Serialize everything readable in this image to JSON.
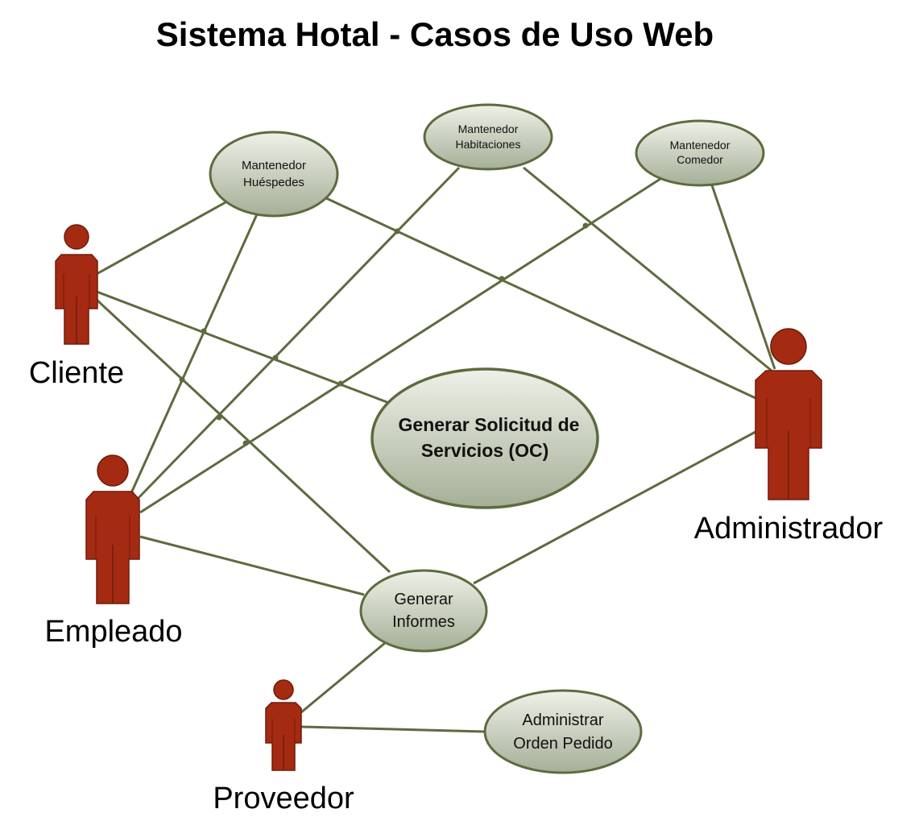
{
  "title": "Sistema Hotal - Casos de Uso Web",
  "colors": {
    "actor_fill": "#a52a12",
    "actor_stroke": "#6e1c0a",
    "usecase_fill_top": "#ecefe6",
    "usecase_fill_bottom": "#a9b39c",
    "usecase_stroke": "#5d6b3e",
    "connector": "#5d6b3e"
  },
  "actors": {
    "cliente": "Cliente",
    "empleado": "Empleado",
    "administrador": "Administrador",
    "proveedor": "Proveedor"
  },
  "use_cases": {
    "mant_huespedes": [
      "Mantenedor",
      "Huéspedes"
    ],
    "mant_habitaciones": [
      "Mantenedor",
      "Habitaciones"
    ],
    "mant_comedor": [
      "Mantenedor",
      "Comedor"
    ],
    "solicitud": [
      "Generar Solicitud de",
      "Servicios (OC)"
    ],
    "informes": [
      "Generar",
      "Informes"
    ],
    "orden_pedido": [
      "Administrar",
      "Orden Pedido"
    ]
  },
  "associations": [
    [
      "cliente",
      "mant_huespedes"
    ],
    [
      "cliente",
      "solicitud"
    ],
    [
      "cliente",
      "informes"
    ],
    [
      "empleado",
      "mant_huespedes"
    ],
    [
      "empleado",
      "mant_habitaciones"
    ],
    [
      "empleado",
      "mant_comedor"
    ],
    [
      "empleado",
      "informes"
    ],
    [
      "administrador",
      "mant_huespedes"
    ],
    [
      "administrador",
      "mant_habitaciones"
    ],
    [
      "administrador",
      "mant_comedor"
    ],
    [
      "administrador",
      "informes"
    ],
    [
      "proveedor",
      "informes"
    ],
    [
      "proveedor",
      "orden_pedido"
    ]
  ]
}
